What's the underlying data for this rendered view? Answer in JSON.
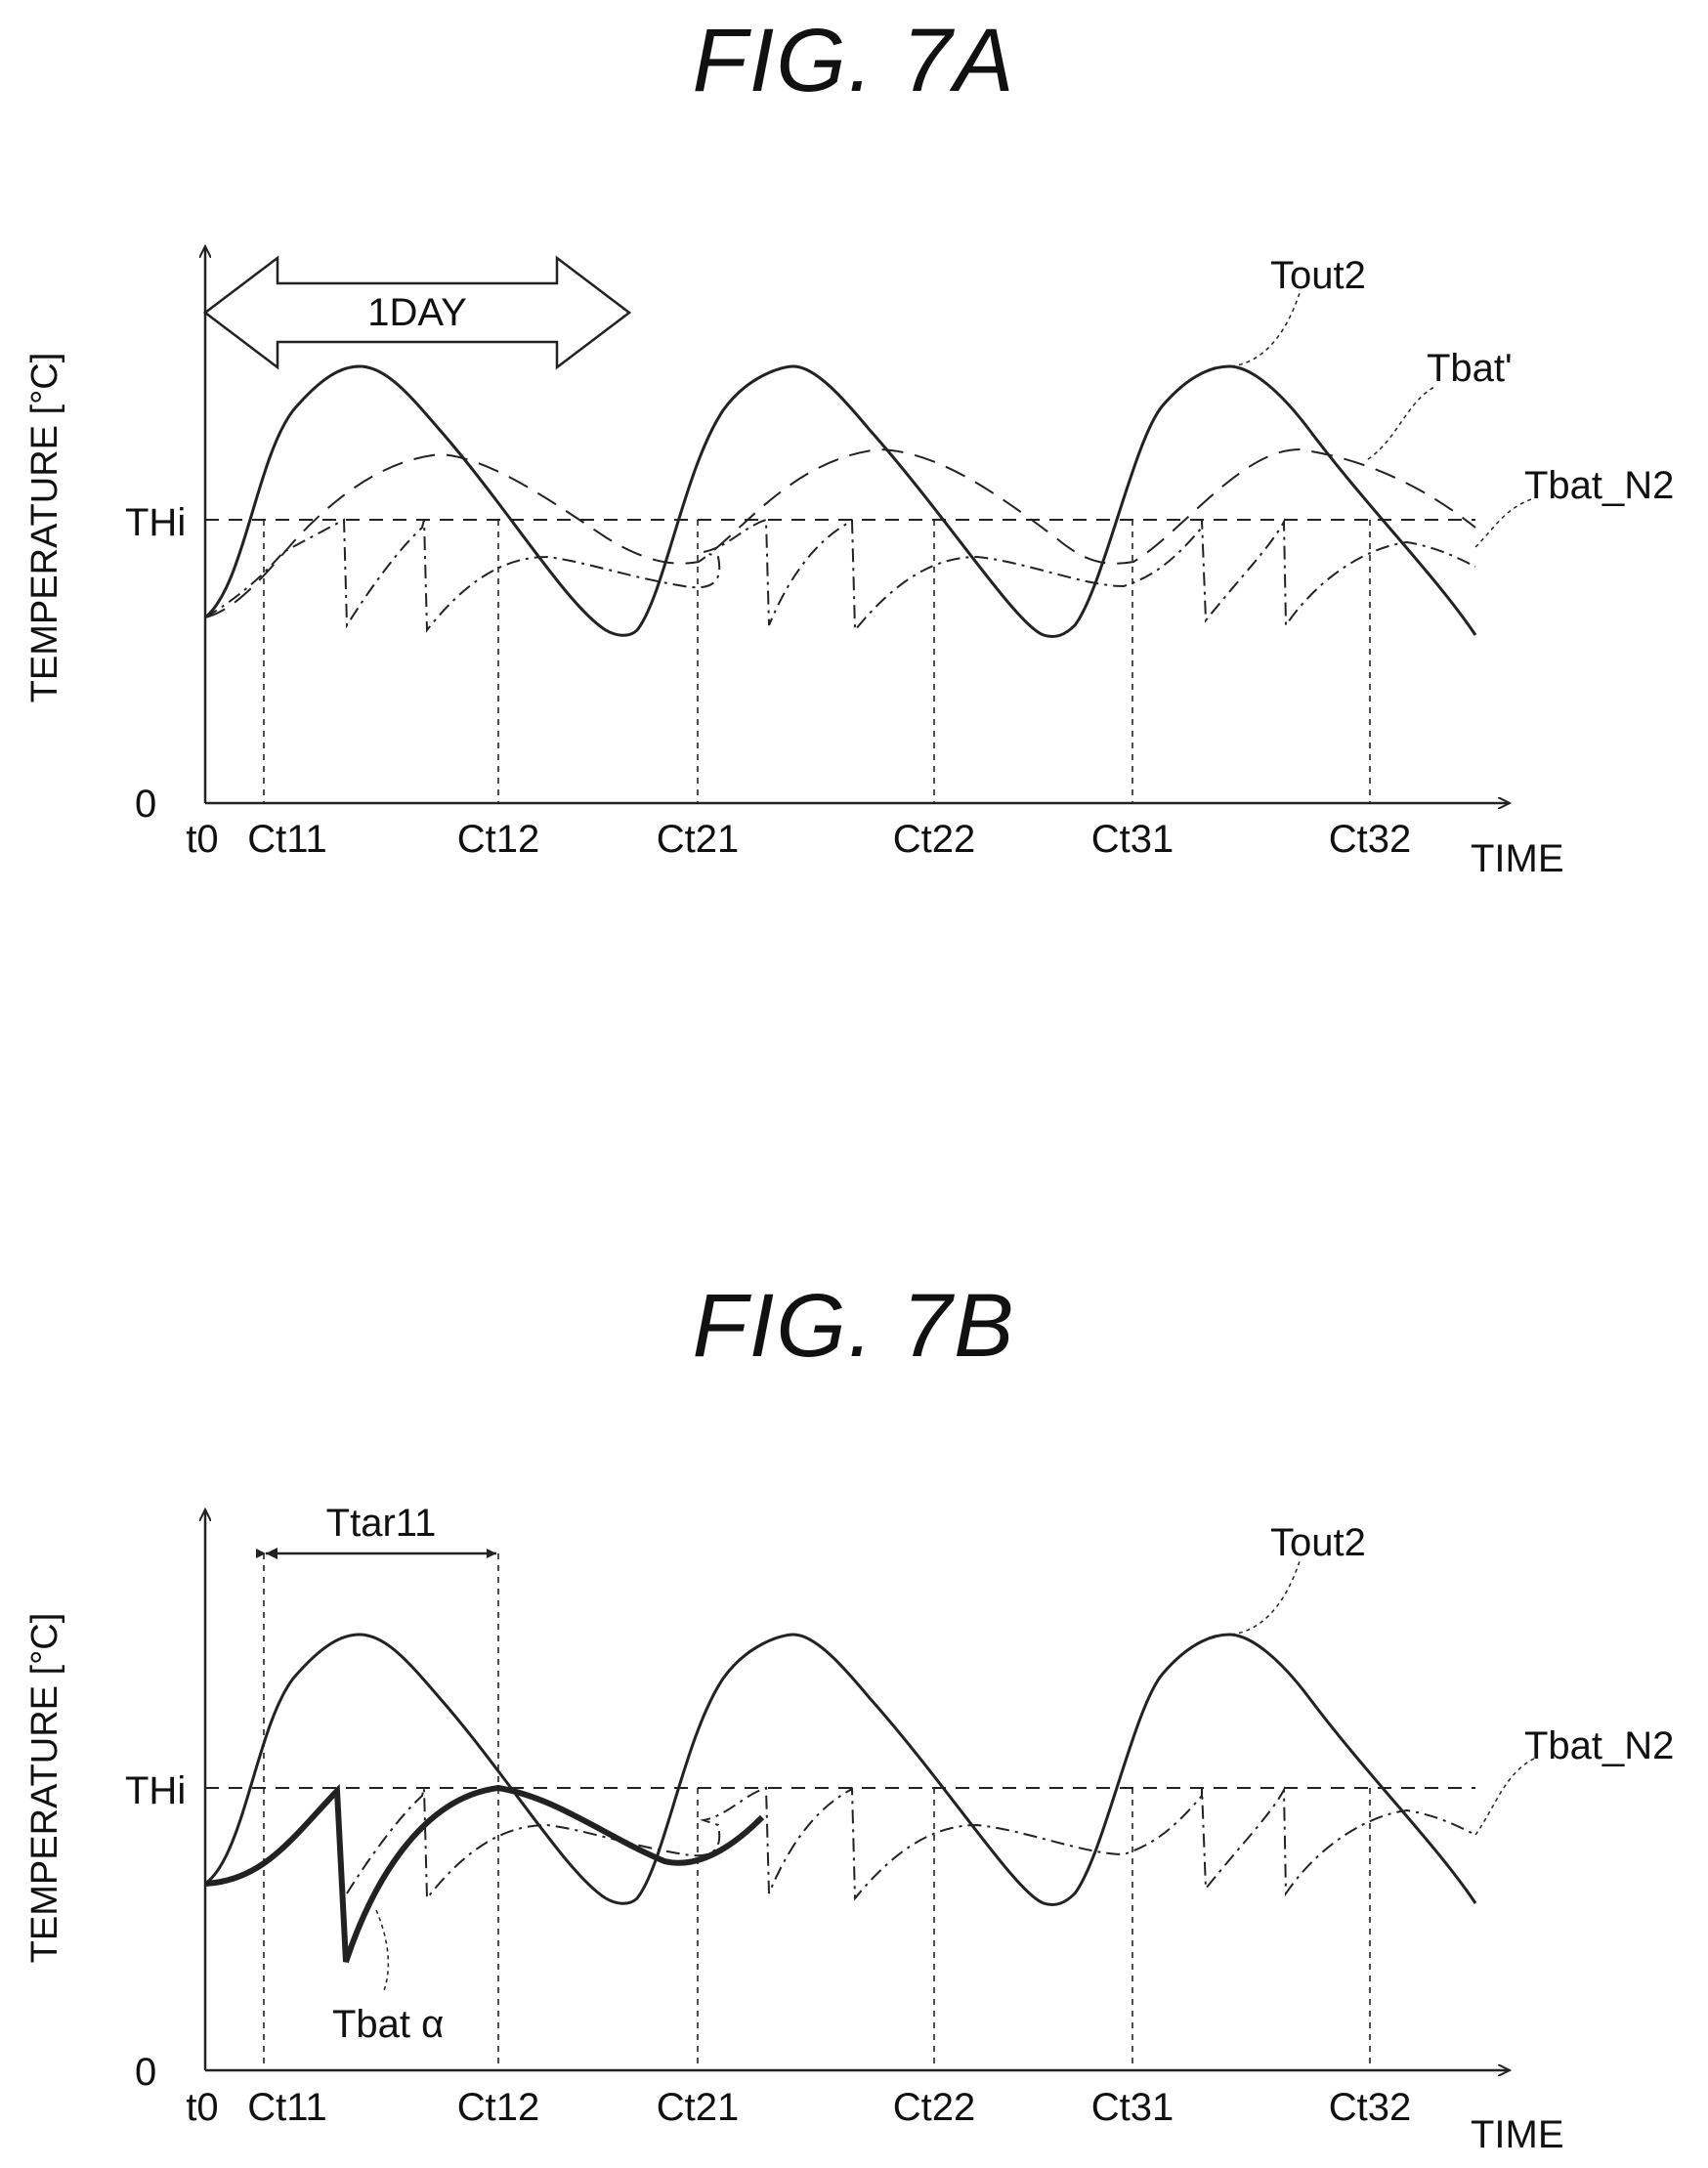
{
  "figures": [
    {
      "id": "A",
      "title": "FIG. 7A"
    },
    {
      "id": "B",
      "title": "FIG. 7B"
    }
  ],
  "chart_data": [
    {
      "type": "line",
      "title": "FIG. 7A",
      "xlabel": "TIME",
      "ylabel": "TEMPERATURE [°C]",
      "y_origin_label": "0",
      "threshold_label": "THi",
      "x_tick_labels": [
        "t0",
        "Ct11",
        "Ct12",
        "Ct21",
        "Ct22",
        "Ct31",
        "Ct32"
      ],
      "annotations": [
        {
          "text": "1DAY",
          "type": "double-arrow"
        }
      ],
      "series": [
        {
          "name": "Tout2",
          "style": "solid"
        },
        {
          "name": "Tbat'",
          "style": "dashed"
        },
        {
          "name": "Tbat_N2",
          "style": "dash-dot"
        }
      ],
      "grid": false
    },
    {
      "type": "line",
      "title": "FIG. 7B",
      "xlabel": "TIME",
      "ylabel": "TEMPERATURE [°C]",
      "y_origin_label": "0",
      "threshold_label": "THi",
      "x_tick_labels": [
        "t0",
        "Ct11",
        "Ct12",
        "Ct21",
        "Ct22",
        "Ct31",
        "Ct32"
      ],
      "annotations": [
        {
          "text": "Ttar11",
          "type": "double-arrow"
        }
      ],
      "series": [
        {
          "name": "Tout2",
          "style": "solid"
        },
        {
          "name": "Tbat_N2",
          "style": "dash-dot"
        },
        {
          "name": "Tbat α",
          "style": "thick"
        }
      ],
      "grid": false
    }
  ]
}
